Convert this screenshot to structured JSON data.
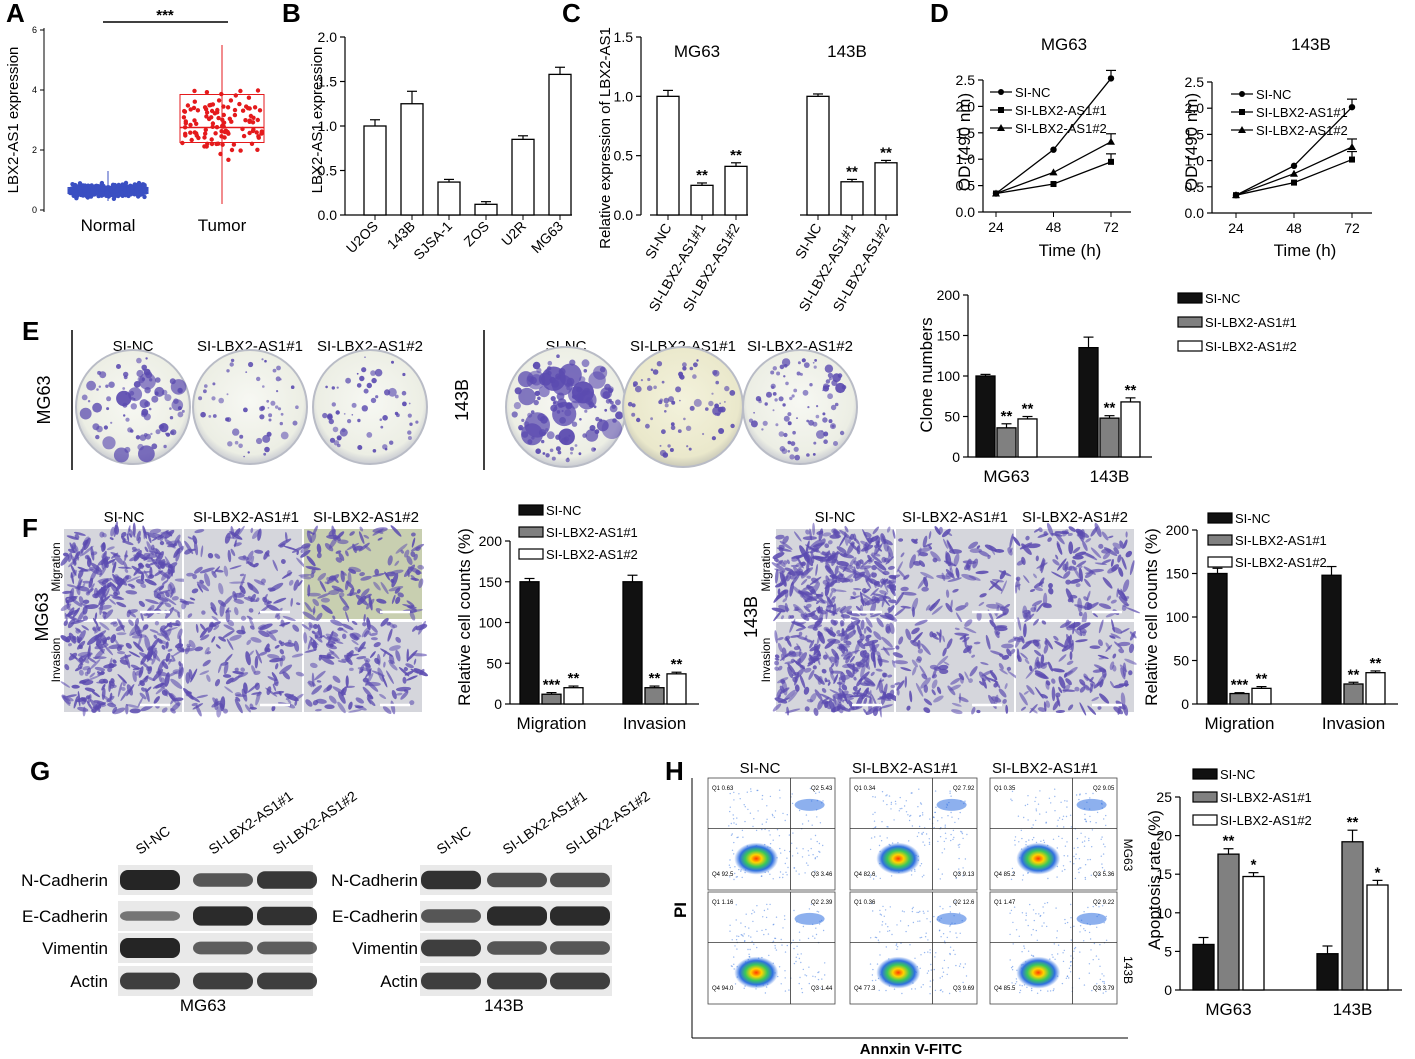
{
  "panel_labels": [
    "A",
    "B",
    "C",
    "D",
    "E",
    "F",
    "G",
    "H"
  ],
  "colors": {
    "red": "#e41a1c",
    "blue": "#3a4fc2",
    "crystal_violet": "#5b4bb0",
    "dark_gray": "#555555",
    "black": "#000000"
  },
  "panelA": {
    "ylabel": "LBX2-AS1 expression",
    "yticks": [
      "0",
      "2",
      "4",
      "6"
    ],
    "groups": [
      "Normal",
      "Tumor"
    ],
    "sig": "***"
  },
  "panelB": {
    "ylabel": "LBX2-AS1 expression",
    "yticks": [
      "0.0",
      "0.5",
      "1.0",
      "1.5",
      "2.0"
    ]
  },
  "panelC": {
    "ylabel": "Relative expression of LBX2-AS1",
    "yticks": [
      "0.0",
      "0.5",
      "1.0",
      "1.5"
    ],
    "cells": [
      "MG63",
      "143B"
    ]
  },
  "panelD": {
    "ylabel": "OD (490 nm)",
    "xlabel": "Time (h)",
    "titles": [
      "MG63",
      "143B"
    ],
    "xticks": [
      "24",
      "48",
      "72"
    ],
    "yticks_left": [
      "0.0",
      "0.5",
      "1.0",
      "1.5",
      "2.0",
      "2.5"
    ],
    "yticks_right": [
      "0.0",
      "0.5",
      "1.0",
      "1.5",
      "2.0",
      "2.5"
    ]
  },
  "panelE": {
    "headers": [
      "SI-NC",
      "SI-LBX2-AS1#1",
      "SI-LBX2-AS1#2"
    ],
    "rows": [
      "MG63",
      "143B"
    ],
    "ylabel": "Clone numbers",
    "yticks": [
      "0",
      "50",
      "100",
      "150",
      "200"
    ],
    "legend": [
      "SI-NC",
      "SI-LBX2-AS1#1",
      "SI-LBX2-AS1#2"
    ]
  },
  "panelF": {
    "headers": [
      "SI-NC",
      "SI-LBX2-AS1#1",
      "SI-LBX2-AS1#2"
    ],
    "row_labels": [
      "Migration",
      "Invasion"
    ],
    "cells": [
      "MG63",
      "143B"
    ],
    "ylabel": "Relative cell counts (%)",
    "yticks": [
      "0",
      "50",
      "100",
      "150",
      "200"
    ],
    "legend": [
      "SI-NC",
      "SI-LBX2-AS1#1",
      "SI-LBX2-AS1#2"
    ]
  },
  "panelG": {
    "lanes": [
      "SI-NC",
      "SI-LBX2-AS1#1",
      "SI-LBX2-AS1#2"
    ],
    "proteins": [
      "N-Cadherin",
      "E-Cadherin",
      "Vimentin",
      "Actin"
    ],
    "cells": [
      "MG63",
      "143B"
    ]
  },
  "panelH": {
    "headers": [
      "SI-NC",
      "SI-LBX2-AS1#1",
      "SI-LBX2-AS1#1"
    ],
    "ylabel_flow": "PI",
    "xlabel_flow": "Annxin V-FITC",
    "row_labels": [
      "MG63",
      "143B"
    ],
    "ylabel": "Apoptosis rate (%)",
    "yticks": [
      "0",
      "5",
      "10",
      "15",
      "20",
      "25"
    ],
    "legend": [
      "SI-NC",
      "SI-LBX2-AS1#1",
      "SI-LBX2-AS1#2"
    ],
    "quadrant_labels": [
      "Q1",
      "Q2",
      "Q3",
      "Q4"
    ],
    "quadrant_values": [
      [
        "0.63",
        "5.43",
        "3.46",
        "92.5"
      ],
      [
        "0.34",
        "7.92",
        "9.13",
        "82.6"
      ],
      [
        "0.35",
        "9.05",
        "5.36",
        "85.2"
      ],
      [
        "1.16",
        "2.39",
        "1.44",
        "94.0"
      ],
      [
        "0.36",
        "12.6",
        "9.69",
        "77.3"
      ],
      [
        "1.47",
        "9.22",
        "3.79",
        "85.5"
      ]
    ]
  },
  "chart_data": [
    {
      "type": "scatter",
      "panel": "A",
      "ylabel": "LBX2-AS1 expression",
      "categories": [
        "Normal",
        "Tumor"
      ],
      "ylim": [
        0,
        6
      ],
      "box": [
        {
          "name": "Normal",
          "q1": 0.55,
          "median": 0.65,
          "q3": 0.75,
          "min": 0.3,
          "max": 1.3
        },
        {
          "name": "Tumor",
          "q1": 2.25,
          "median": 2.75,
          "q3": 3.85,
          "min": 0.2,
          "max": 5.5
        }
      ]
    },
    {
      "type": "bar",
      "panel": "B",
      "ylabel": "LBX2-AS1 expression",
      "categories": [
        "U2OS",
        "143B",
        "SJSA-1",
        "ZOS",
        "U2R",
        "MG63"
      ],
      "values": [
        1.0,
        1.25,
        0.37,
        0.12,
        0.85,
        1.58
      ],
      "errors": [
        0.07,
        0.14,
        0.03,
        0.03,
        0.04,
        0.08
      ],
      "ylim": [
        0,
        2.0
      ]
    },
    {
      "type": "bar",
      "panel": "C",
      "ylabel": "Relative expression of LBX2-AS1",
      "groups": [
        {
          "name": "MG63",
          "categories": [
            "SI-NC",
            "SI-LBX2-AS1#1",
            "SI-LBX2-AS1#2"
          ],
          "values": [
            1.0,
            0.25,
            0.41
          ],
          "errors": [
            0.05,
            0.02,
            0.03
          ],
          "sig": [
            "",
            "**",
            "**"
          ]
        },
        {
          "name": "143B",
          "categories": [
            "SI-NC",
            "SI-LBX2-AS1#1",
            "SI-LBX2-AS1#2"
          ],
          "values": [
            1.0,
            0.28,
            0.44
          ],
          "errors": [
            0.02,
            0.02,
            0.02
          ],
          "sig": [
            "",
            "**",
            "**"
          ]
        }
      ],
      "ylim": [
        0,
        1.5
      ]
    },
    {
      "type": "line",
      "panel": "D-MG63",
      "title": "MG63",
      "xlabel": "Time (h)",
      "ylabel": "OD (490 nm)",
      "x": [
        24,
        48,
        72
      ],
      "series": [
        {
          "name": "SI-NC",
          "values": [
            0.35,
            1.18,
            2.53
          ]
        },
        {
          "name": "SI-LBX2-AS1#1",
          "values": [
            0.35,
            0.53,
            0.95
          ]
        },
        {
          "name": "SI-LBX2-AS1#2",
          "values": [
            0.35,
            0.75,
            1.33
          ]
        }
      ],
      "ylim": [
        0,
        2.5
      ]
    },
    {
      "type": "line",
      "panel": "D-143B",
      "title": "143B",
      "xlabel": "Time (h)",
      "ylabel": "OD (490 nm)",
      "x": [
        24,
        48,
        72
      ],
      "series": [
        {
          "name": "SI-NC",
          "values": [
            0.34,
            0.9,
            2.02
          ]
        },
        {
          "name": "SI-LBX2-AS1#1",
          "values": [
            0.34,
            0.58,
            1.02
          ]
        },
        {
          "name": "SI-LBX2-AS1#2",
          "values": [
            0.34,
            0.75,
            1.26
          ]
        }
      ],
      "ylim": [
        0,
        2.5
      ]
    },
    {
      "type": "bar",
      "panel": "E",
      "ylabel": "Clone numbers",
      "categories": [
        "MG63",
        "143B"
      ],
      "series": [
        {
          "name": "SI-NC",
          "values": [
            100,
            135
          ],
          "errors": [
            2,
            13
          ]
        },
        {
          "name": "SI-LBX2-AS1#1",
          "values": [
            36,
            48
          ],
          "errors": [
            5,
            3
          ]
        },
        {
          "name": "SI-LBX2-AS1#2",
          "values": [
            47,
            68
          ],
          "errors": [
            3,
            5
          ]
        }
      ],
      "sig": [
        [
          "",
          "**",
          "**"
        ],
        [
          "",
          "**",
          "**"
        ]
      ],
      "ylim": [
        0,
        200
      ]
    },
    {
      "type": "bar",
      "panel": "F-MG63",
      "ylabel": "Relative cell counts (%)",
      "categories": [
        "Migration",
        "Invasion"
      ],
      "series": [
        {
          "name": "SI-NC",
          "values": [
            150,
            150
          ],
          "errors": [
            4,
            8
          ]
        },
        {
          "name": "SI-LBX2-AS1#1",
          "values": [
            12,
            20
          ],
          "errors": [
            2,
            2
          ]
        },
        {
          "name": "SI-LBX2-AS1#2",
          "values": [
            20,
            37
          ],
          "errors": [
            2,
            2
          ]
        }
      ],
      "sig": [
        [
          "",
          "***",
          "**"
        ],
        [
          "",
          "**",
          "**"
        ]
      ],
      "ylim": [
        0,
        200
      ]
    },
    {
      "type": "bar",
      "panel": "F-143B",
      "ylabel": "Relative cell counts (%)",
      "categories": [
        "Migration",
        "Invasion"
      ],
      "series": [
        {
          "name": "SI-NC",
          "values": [
            150,
            148
          ],
          "errors": [
            6,
            10
          ]
        },
        {
          "name": "SI-LBX2-AS1#1",
          "values": [
            12,
            23
          ],
          "errors": [
            1,
            2
          ]
        },
        {
          "name": "SI-LBX2-AS1#2",
          "values": [
            18,
            36
          ],
          "errors": [
            2,
            2
          ]
        }
      ],
      "sig": [
        [
          "",
          "***",
          "**"
        ],
        [
          "",
          "**",
          "**"
        ]
      ],
      "ylim": [
        0,
        200
      ]
    },
    {
      "type": "bar",
      "panel": "H",
      "ylabel": "Apoptosis rate (%)",
      "categories": [
        "MG63",
        "143B"
      ],
      "series": [
        {
          "name": "SI-NC",
          "values": [
            5.9,
            4.7
          ],
          "errors": [
            0.9,
            1.0
          ]
        },
        {
          "name": "SI-LBX2-AS1#1",
          "values": [
            17.6,
            19.2
          ],
          "errors": [
            0.7,
            1.5
          ]
        },
        {
          "name": "SI-LBX2-AS1#2",
          "values": [
            14.7,
            13.6
          ],
          "errors": [
            0.5,
            0.6
          ]
        }
      ],
      "sig": [
        [
          "",
          "**",
          "*"
        ],
        [
          "",
          "**",
          "*"
        ]
      ],
      "ylim": [
        0,
        25
      ]
    }
  ]
}
